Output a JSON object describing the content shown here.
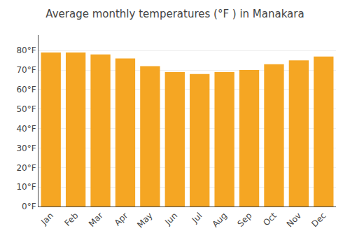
{
  "chart_data": {
    "type": "bar",
    "title": "Average monthly temperatures (°F ) in Manakara",
    "categories": [
      "Jan",
      "Feb",
      "Mar",
      "Apr",
      "May",
      "Jun",
      "Jul",
      "Aug",
      "Sep",
      "Oct",
      "Nov",
      "Dec"
    ],
    "values": [
      79,
      79,
      78,
      76,
      72,
      69,
      68,
      69,
      70,
      73,
      75,
      77
    ],
    "color": "#F5A623",
    "ylim": [
      0,
      88
    ],
    "yticks": [
      {
        "value": 0,
        "label": "0°F"
      },
      {
        "value": 10,
        "label": "10°F"
      },
      {
        "value": 20,
        "label": "20°F"
      },
      {
        "value": 30,
        "label": "30°F"
      },
      {
        "value": 40,
        "label": "40°F"
      },
      {
        "value": 50,
        "label": "50°F"
      },
      {
        "value": 60,
        "label": "60°F"
      },
      {
        "value": 70,
        "label": "70°F"
      },
      {
        "value": 80,
        "label": "80°F"
      }
    ],
    "grid": true
  }
}
